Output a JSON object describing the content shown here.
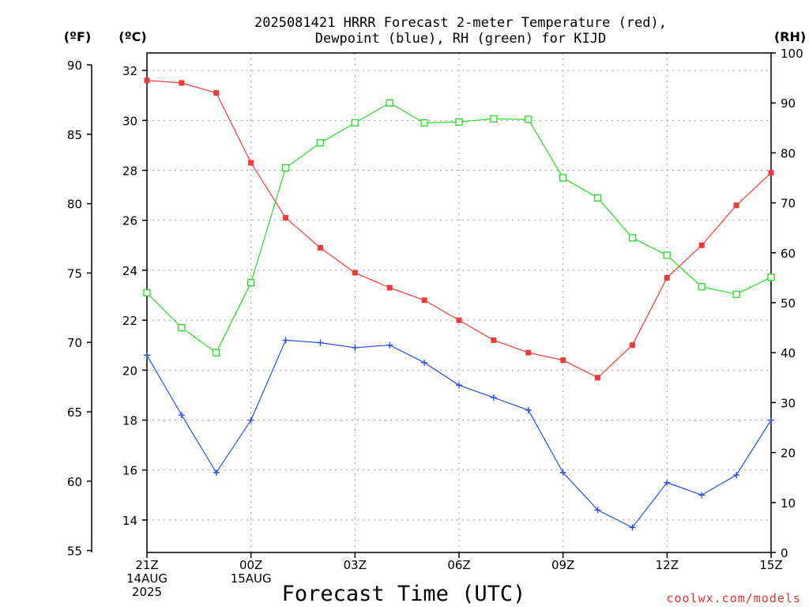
{
  "chart_data": {
    "type": "line",
    "title": [
      "2025081421 HRRR Forecast 2-meter Temperature (red),",
      "Dewpoint (blue), RH (green) for KIJD"
    ],
    "xlabel": "Forecast Time (UTC)",
    "credit": "coolwx.com/models",
    "units": {
      "fahrenheit": "(ºF)",
      "celsius": "(ºC)",
      "rh": "(RH)"
    },
    "hours": [
      0,
      1,
      2,
      3,
      4,
      5,
      6,
      7,
      8,
      9,
      10,
      11,
      12,
      13,
      14,
      15,
      16,
      17,
      18
    ],
    "x_ticks": [
      {
        "hour": 0,
        "lines": [
          "21Z",
          "14AUG",
          "2025"
        ]
      },
      {
        "hour": 3,
        "lines": [
          "00Z",
          "15AUG"
        ]
      },
      {
        "hour": 6,
        "lines": [
          "03Z"
        ]
      },
      {
        "hour": 9,
        "lines": [
          "06Z"
        ]
      },
      {
        "hour": 12,
        "lines": [
          "09Z"
        ]
      },
      {
        "hour": 15,
        "lines": [
          "12Z"
        ]
      },
      {
        "hour": 18,
        "lines": [
          "15Z"
        ]
      }
    ],
    "celsius_axis": {
      "ylim": [
        12.7,
        32.7
      ],
      "ticks": [
        14,
        16,
        18,
        20,
        22,
        24,
        26,
        28,
        30,
        32
      ]
    },
    "fahrenheit_axis": {
      "ticks": [
        55,
        60,
        65,
        70,
        75,
        80,
        85,
        90
      ]
    },
    "rh_axis": {
      "ylim": [
        0,
        100
      ],
      "ticks": [
        0,
        10,
        20,
        30,
        40,
        50,
        60,
        70,
        80,
        90,
        100
      ]
    },
    "grid": true,
    "series": [
      {
        "name": "Temperature",
        "color": "#f03a3a",
        "marker": "filled-square",
        "axis": "celsius",
        "values": [
          31.6,
          31.5,
          31.1,
          28.3,
          26.1,
          24.9,
          23.9,
          23.3,
          22.8,
          22.0,
          21.2,
          20.7,
          20.4,
          19.7,
          21.0,
          23.7,
          25.0,
          26.6,
          27.9
        ]
      },
      {
        "name": "Dewpoint",
        "color": "#2a4fe0",
        "marker": "plus",
        "axis": "celsius",
        "values": [
          20.6,
          18.2,
          15.9,
          18.0,
          21.2,
          21.1,
          20.9,
          21.0,
          20.3,
          19.4,
          18.9,
          18.4,
          15.9,
          14.4,
          13.7,
          15.5,
          15.0,
          15.8,
          18.0
        ]
      },
      {
        "name": "RH",
        "color": "#22dd22",
        "marker": "open-square",
        "axis": "rh",
        "values": [
          52,
          45,
          40,
          54,
          77,
          82,
          86,
          90,
          86,
          86.2,
          86.8,
          86.7,
          75,
          71,
          63,
          59.5,
          53.2,
          51.7,
          55.1
        ]
      }
    ]
  }
}
